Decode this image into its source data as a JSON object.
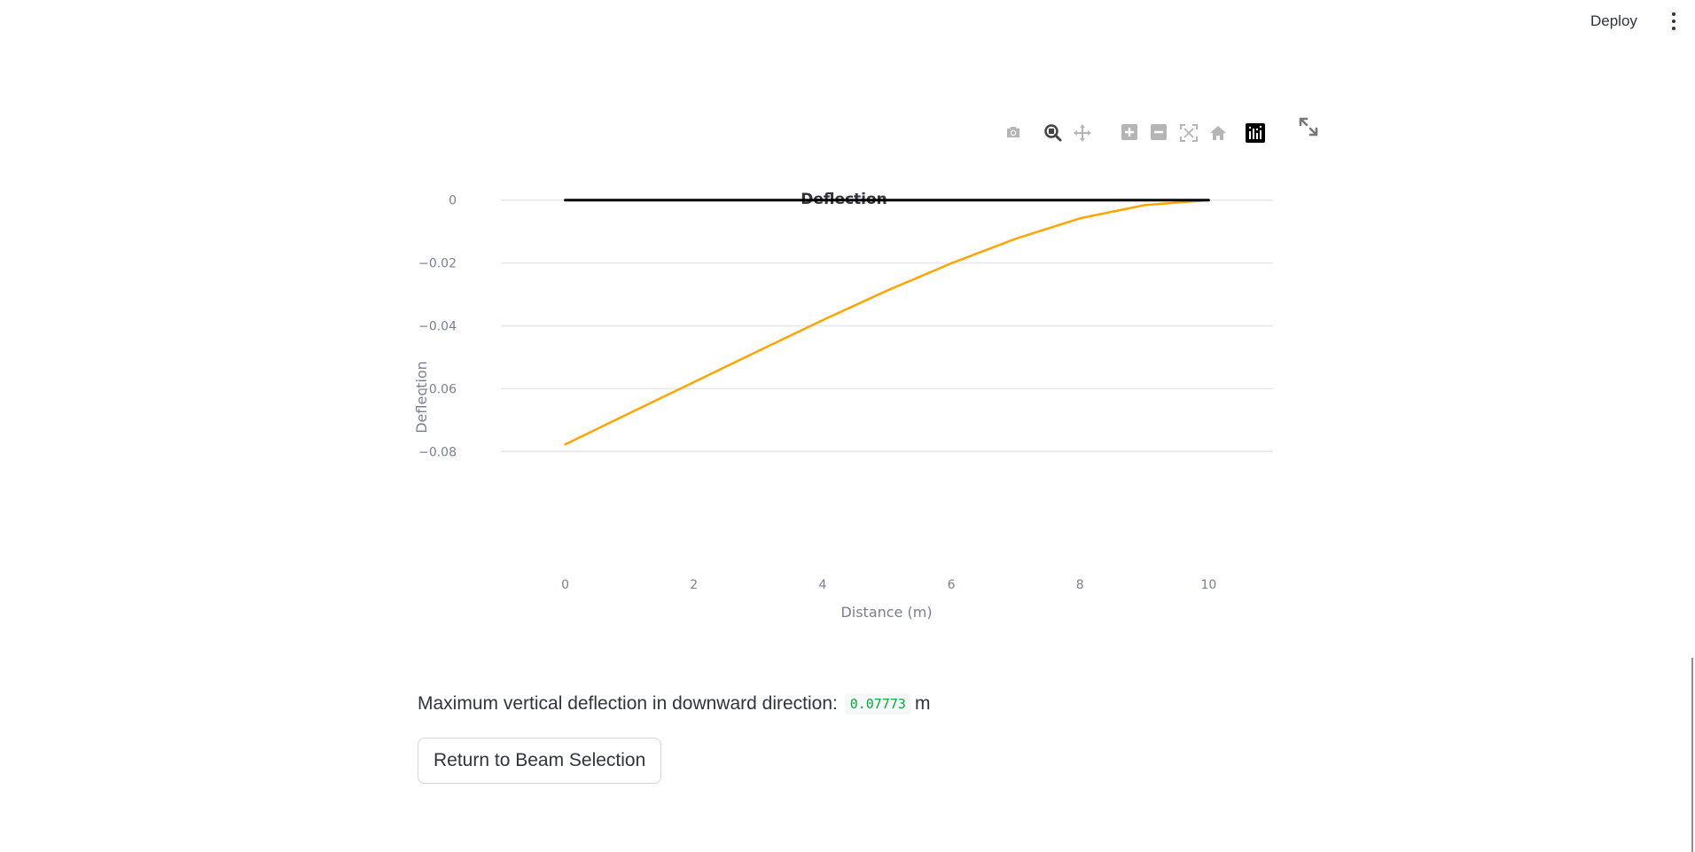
{
  "header": {
    "deploy_label": "Deploy",
    "menu_icon": "vertical-ellipsis-icon"
  },
  "modebar": {
    "buttons": [
      {
        "name": "camera-icon"
      },
      {
        "name": "zoom-icon",
        "active": true
      },
      {
        "name": "pan-icon"
      },
      {
        "name": "zoom-in-icon"
      },
      {
        "name": "zoom-out-icon"
      },
      {
        "name": "autoscale-icon"
      },
      {
        "name": "reset-axes-icon"
      },
      {
        "name": "plotly-logo-icon"
      }
    ],
    "fullscreen_icon": "expand-icon"
  },
  "chart_data": {
    "type": "line",
    "title": "Deflection",
    "xlabel": "Distance (m)",
    "ylabel": "Deflection",
    "xlim": [
      -1,
      11
    ],
    "ylim": [
      -0.085,
      0.005
    ],
    "x_ticks": [
      0,
      2,
      4,
      6,
      8,
      10
    ],
    "y_ticks": [
      0,
      -0.02,
      -0.04,
      -0.06,
      -0.08
    ],
    "y_tick_labels": [
      "0",
      "−0.02",
      "−0.04",
      "−0.06",
      "−0.08"
    ],
    "grid": true,
    "series": [
      {
        "color": "#000000",
        "x": [
          0,
          10
        ],
        "y": [
          0,
          0
        ]
      },
      {
        "color": "#ffa500",
        "x": [
          0,
          1,
          2,
          3,
          4,
          5,
          6,
          7,
          8,
          9,
          10
        ],
        "y": [
          -0.07773,
          -0.0678,
          -0.0579,
          -0.048,
          -0.0382,
          -0.0288,
          -0.0201,
          -0.0123,
          -0.0058,
          -0.0016,
          0
        ]
      }
    ]
  },
  "result": {
    "label": "Maximum vertical deflection in downward direction:",
    "value": "0.07773",
    "unit": "m"
  },
  "return_button_label": "Return to Beam Selection"
}
